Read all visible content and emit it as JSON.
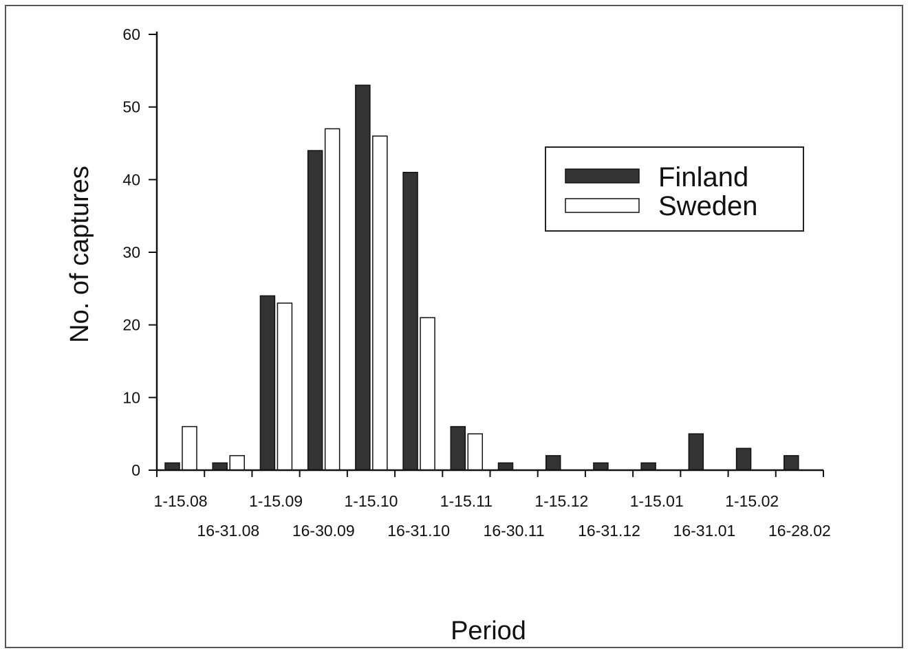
{
  "chart_data": {
    "type": "bar",
    "categories": [
      "1-15.08",
      "16-31.08",
      "1-15.09",
      "16-30.09",
      "1-15.10",
      "16-31.10",
      "1-15.11",
      "16-30.11",
      "1-15.12",
      "16-31.12",
      "1-15.01",
      "16-31.01",
      "1-15.02",
      "16-28.02"
    ],
    "series": [
      {
        "name": "Finland",
        "color": "#333333",
        "values": [
          1,
          1,
          24,
          44,
          53,
          41,
          6,
          1,
          2,
          1,
          1,
          5,
          3,
          2
        ]
      },
      {
        "name": "Sweden",
        "color": "#ffffff",
        "values": [
          6,
          2,
          23,
          47,
          46,
          21,
          5,
          0,
          0,
          0,
          0,
          0,
          0,
          0
        ]
      }
    ],
    "xlabel": "Period",
    "ylabel": "No. of captures",
    "ylim": [
      0,
      60
    ],
    "yticks": [
      0,
      10,
      20,
      30,
      40,
      50,
      60
    ],
    "grid": false,
    "legend_position": "top-right"
  }
}
